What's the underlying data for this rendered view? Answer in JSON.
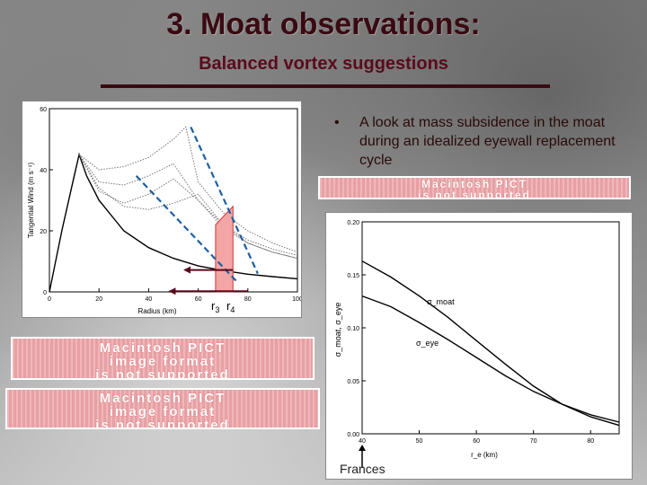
{
  "slide": {
    "title": "3. Moat observations:",
    "subtitle": "Balanced vortex suggestions",
    "bullet_symbol": "•",
    "bullet_text": "A look at mass subsidence in the moat during an idealized eyewall replacement cycle",
    "accent_color": "#3a0a12",
    "subtitle_color": "#5a0a1a"
  },
  "placeholders": {
    "line1": "Macintosh PICT",
    "line2": "image format",
    "line3": "is not supported"
  },
  "left_chart_labels": {
    "ylabel": "Tangential Wind (m s⁻¹)",
    "xlabel": "Radius (km)",
    "r3": "r",
    "r3_sub": "3",
    "r4": "r",
    "r4_sub": "4"
  },
  "right_chart_labels": {
    "ylabel": "σ_moat, σ_eye",
    "xlabel": "r_e (km)",
    "curve_moat": "σ_moat",
    "curve_eye": "σ_eye",
    "frances": "Frances"
  },
  "chart_data": [
    {
      "type": "line",
      "title": "",
      "xlabel": "Radius (km)",
      "ylabel": "Tangential Wind (m s⁻¹)",
      "xlim": [
        0,
        100
      ],
      "ylim": [
        0,
        60
      ],
      "xticks": [
        0,
        20,
        40,
        60,
        80,
        100
      ],
      "yticks": [
        0,
        20,
        40,
        60
      ],
      "series": [
        {
          "style": "solid",
          "x": [
            0,
            5,
            10,
            12,
            15,
            20,
            30,
            40,
            50,
            60,
            70,
            80,
            90,
            100
          ],
          "y": [
            0,
            20,
            38,
            45,
            38,
            30,
            20,
            14.5,
            11,
            8.5,
            7,
            5.8,
            5,
            4.3
          ]
        },
        {
          "style": "dotted",
          "x": [
            12,
            20,
            30,
            40,
            50,
            60,
            70,
            80,
            90,
            100
          ],
          "y": [
            45,
            34,
            28,
            27,
            29,
            32,
            22,
            16,
            13,
            11
          ]
        },
        {
          "style": "dotted",
          "x": [
            12,
            20,
            30,
            40,
            50,
            60,
            70,
            80,
            90,
            100
          ],
          "y": [
            45,
            33,
            29,
            32,
            37,
            30,
            21,
            16,
            13,
            11
          ]
        },
        {
          "style": "dotted",
          "x": [
            12,
            20,
            30,
            40,
            50,
            60,
            70,
            80,
            90,
            100
          ],
          "y": [
            45,
            36,
            35,
            38,
            42,
            30,
            22,
            17,
            14,
            12
          ]
        },
        {
          "style": "dotted",
          "x": [
            12,
            20,
            30,
            40,
            50,
            55,
            60,
            70,
            80,
            90,
            100
          ],
          "y": [
            45,
            40,
            41,
            44,
            50,
            54,
            36,
            26,
            20,
            16,
            13
          ]
        }
      ],
      "annotations": [
        "r3",
        "r4"
      ]
    },
    {
      "type": "line",
      "title": "",
      "xlabel": "r_e (km)",
      "ylabel": "σ_moat, σ_eye",
      "xlim": [
        40,
        85
      ],
      "ylim": [
        0,
        0.2
      ],
      "xticks": [
        40,
        50,
        60,
        70,
        80
      ],
      "yticks": [
        0.0,
        0.05,
        0.1,
        0.15,
        0.2
      ],
      "series": [
        {
          "name": "σ_moat",
          "style": "solid",
          "x": [
            40,
            45,
            50,
            55,
            60,
            65,
            70,
            75,
            80,
            85
          ],
          "y": [
            0.163,
            0.148,
            0.13,
            0.11,
            0.088,
            0.066,
            0.045,
            0.028,
            0.016,
            0.008
          ]
        },
        {
          "name": "σ_eye",
          "style": "solid",
          "x": [
            40,
            45,
            50,
            55,
            60,
            65,
            70,
            75,
            80,
            85
          ],
          "y": [
            0.13,
            0.12,
            0.105,
            0.089,
            0.072,
            0.055,
            0.04,
            0.028,
            0.018,
            0.011
          ]
        }
      ],
      "annotations": [
        "Frances"
      ]
    }
  ]
}
